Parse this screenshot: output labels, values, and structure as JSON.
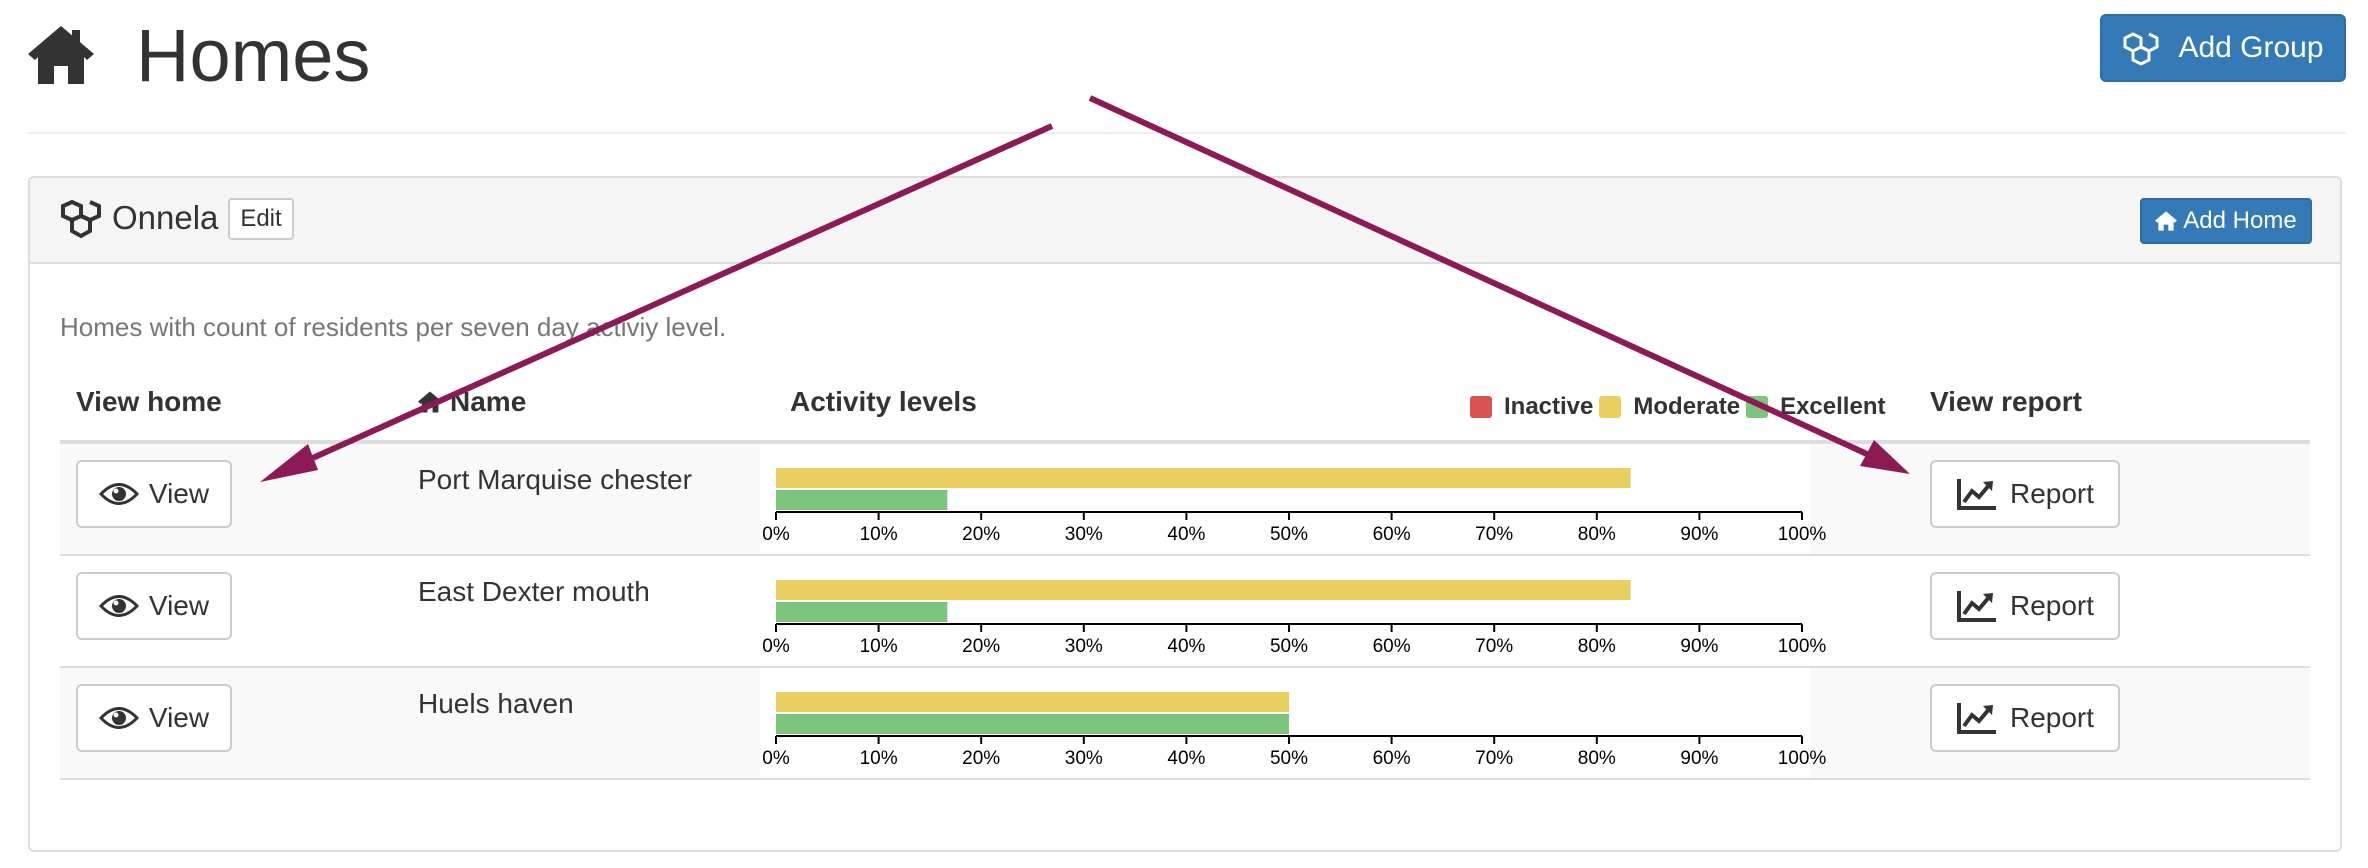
{
  "header": {
    "title": "Homes",
    "icon": "home-icon",
    "add_group_label": "Add Group",
    "add_group_icon": "cubes-icon"
  },
  "group": {
    "icon": "cubes-icon",
    "name": "Onnela",
    "edit_label": "Edit",
    "add_home_label": "Add Home",
    "add_home_icon": "home-icon",
    "description": "Homes with count of residents per seven day activiy level.",
    "columns": {
      "view_home": "View home",
      "name": "Name",
      "activity": "Activity levels",
      "view_report": "View report"
    },
    "legend": [
      {
        "label": "Inactive",
        "color": "#d9534f"
      },
      {
        "label": "Moderate",
        "color": "#e8cf5f"
      },
      {
        "label": "Excellent",
        "color": "#7dc47c"
      }
    ],
    "homes": [
      {
        "name": "Port Marquise chester",
        "view_label": "View",
        "report_label": "Report"
      },
      {
        "name": "East Dexter mouth",
        "view_label": "View",
        "report_label": "Report"
      },
      {
        "name": "Huels haven",
        "view_label": "View",
        "report_label": "Report"
      }
    ]
  },
  "chart_data": [
    {
      "type": "bar",
      "orientation": "horizontal",
      "home": "Port Marquise chester",
      "series": [
        {
          "name": "Moderate",
          "values": [
            83.3
          ]
        },
        {
          "name": "Excellent",
          "values": [
            16.7
          ]
        }
      ],
      "xlim": [
        0,
        100
      ],
      "xticks": [
        "0%",
        "10%",
        "20%",
        "30%",
        "40%",
        "50%",
        "60%",
        "70%",
        "80%",
        "90%",
        "100%"
      ]
    },
    {
      "type": "bar",
      "orientation": "horizontal",
      "home": "East Dexter mouth",
      "series": [
        {
          "name": "Moderate",
          "values": [
            83.3
          ]
        },
        {
          "name": "Excellent",
          "values": [
            16.7
          ]
        }
      ],
      "xlim": [
        0,
        100
      ],
      "xticks": [
        "0%",
        "10%",
        "20%",
        "30%",
        "40%",
        "50%",
        "60%",
        "70%",
        "80%",
        "90%",
        "100%"
      ]
    },
    {
      "type": "bar",
      "orientation": "horizontal",
      "home": "Huels haven",
      "series": [
        {
          "name": "Moderate",
          "values": [
            50
          ]
        },
        {
          "name": "Excellent",
          "values": [
            50
          ]
        }
      ],
      "xlim": [
        0,
        100
      ],
      "xticks": [
        "0%",
        "10%",
        "20%",
        "30%",
        "40%",
        "50%",
        "60%",
        "70%",
        "80%",
        "90%",
        "100%"
      ]
    }
  ],
  "colors": {
    "primary": "#337ab7",
    "annotation_arrow": "#8b1a55",
    "moderate": "#e8cf5f",
    "excellent": "#7dc47c",
    "inactive": "#d9534f"
  }
}
